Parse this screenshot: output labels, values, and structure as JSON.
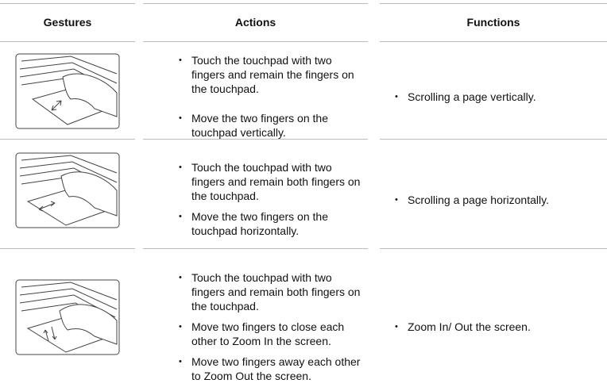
{
  "header": {
    "columns": [
      "Gestures",
      "Actions",
      "Functions"
    ]
  },
  "rows": [
    {
      "actions": [
        "Touch the touchpad with two fingers and remain the fingers on the touchpad.",
        "Move the two fingers on the touchpad vertically."
      ],
      "function": "Scrolling a page vertically."
    },
    {
      "actions": [
        "Touch the touchpad with two fingers and remain both fingers on the touchpad.",
        "Move the two fingers on the touchpad horizontally."
      ],
      "function": "Scrolling a page horizontally."
    },
    {
      "actions": [
        "Touch the touchpad with two fingers and remain both fingers on the touchpad.",
        "Move two fingers to close each other to Zoom In the screen.",
        "Move two fingers away each other to Zoom Out the screen."
      ],
      "function": "Zoom In/ Out the screen."
    }
  ]
}
